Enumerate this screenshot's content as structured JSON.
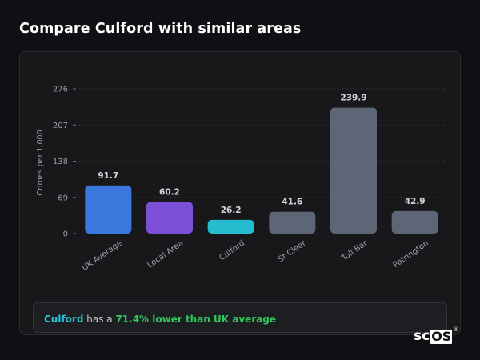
{
  "page": {
    "title": "Compare Culford with similar areas"
  },
  "summary": {
    "area": "Culford",
    "middle": " has a ",
    "stat": "71.4% lower than UK average"
  },
  "brand": {
    "sc": "sc",
    "os": "OS",
    "reg": "®"
  },
  "chart_data": {
    "type": "bar",
    "title": "",
    "ylabel": "Crimes per 1,000",
    "xlabel": "",
    "ylim": [
      0,
      276
    ],
    "yticks": [
      0,
      69,
      138,
      207,
      276
    ],
    "categories": [
      "UK Average",
      "Local Area",
      "Culford",
      "St Cleer",
      "Toll Bar",
      "Patrington"
    ],
    "values": [
      91.7,
      60.2,
      26.2,
      41.6,
      239.9,
      42.9
    ],
    "value_labels": [
      "91.7",
      "60.2",
      "26.2",
      "41.6",
      "239.9",
      "42.9"
    ],
    "colors": [
      "#3a78dd",
      "#7c4fd8",
      "#26bcd0",
      "#5c6677",
      "#5c6677",
      "#5c6677"
    ],
    "grid": true,
    "legend": "none"
  }
}
